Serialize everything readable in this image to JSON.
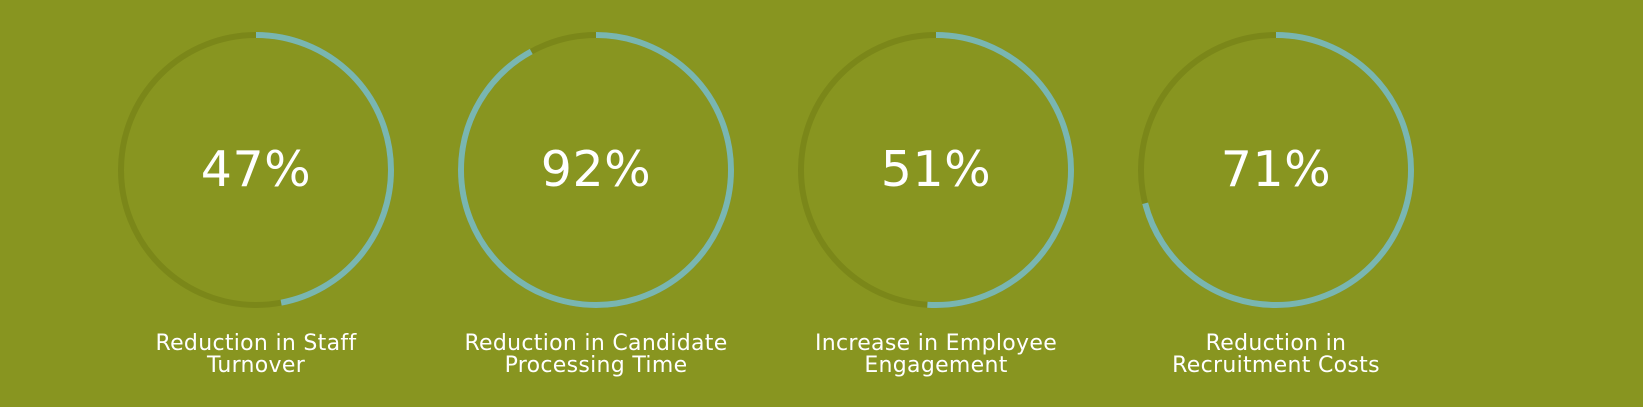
{
  "theme": {
    "background": "#889520",
    "track_color": "#7b8719",
    "progress_color": "#79b6b1",
    "text_color": "#ffffff"
  },
  "stats": [
    {
      "percent_label": "47%",
      "progress": 0.47,
      "caption_lines": [
        "Reduction in Staff",
        "Turnover"
      ]
    },
    {
      "percent_label": "92%",
      "progress": 0.92,
      "caption_lines": [
        "Reduction in Candidate",
        "Processing Time"
      ]
    },
    {
      "percent_label": "51%",
      "progress": 0.51,
      "caption_lines": [
        "Increase in Employee",
        "Engagement"
      ]
    },
    {
      "percent_label": "71%",
      "progress": 0.71,
      "caption_lines": [
        "Reduction in",
        "Recruitment Costs"
      ]
    }
  ]
}
